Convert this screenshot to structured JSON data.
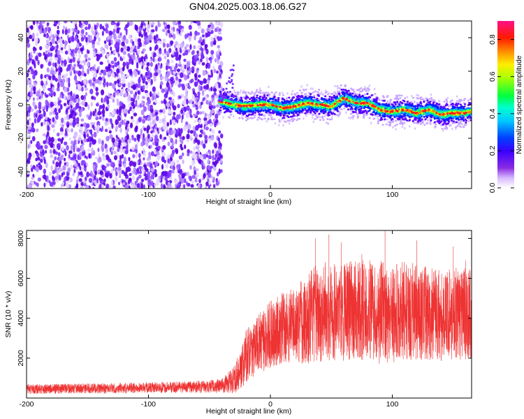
{
  "title": "GN04.2025.003.18.06.G27",
  "colors": {
    "snr_line": "#ee3333",
    "noise_point": "#6a1bff",
    "axis": "#000000"
  },
  "chart_data": [
    {
      "type": "heatmap",
      "xlabel": "Height of straight line (km)",
      "ylabel": "Frequency (Hz)",
      "xlim": [
        -200,
        165
      ],
      "ylim": [
        -50,
        50
      ],
      "x_ticks": [
        -200,
        -100,
        0,
        100
      ],
      "x_tick_labels": [
        "-200",
        "-100",
        "0",
        "100"
      ],
      "y_ticks": [
        -40,
        -20,
        0,
        20,
        40
      ],
      "y_tick_labels": [
        "-40",
        "-20",
        "0",
        "20",
        "40"
      ],
      "colorbar": {
        "label": "Normalized spectral amplitude",
        "range": [
          0,
          0.9
        ],
        "ticks": [
          0,
          0.2,
          0.4,
          0.6,
          0.8
        ],
        "tick_labels": [
          "0.0",
          "0.2",
          "0.4",
          "0.6",
          "0.8"
        ],
        "colormap": "rainbow (white-violet-blue-cyan-green-yellow-red-magenta)"
      },
      "noise_region": {
        "x_range": [
          -200,
          -40
        ],
        "y_range": [
          -50,
          50
        ],
        "amplitude": "0.0-0.15"
      },
      "ridge": {
        "x": [
          -42,
          -30,
          -20,
          -10,
          0,
          10,
          20,
          30,
          40,
          50,
          60,
          70,
          80,
          90,
          100,
          110,
          120,
          130,
          140,
          150,
          160,
          165
        ],
        "frequency": [
          2,
          0,
          -1,
          0,
          0,
          -2,
          -1,
          1,
          0,
          -1,
          4,
          1,
          1,
          -3,
          -4,
          -3,
          -5,
          -3,
          -6,
          -5,
          -5,
          -4
        ]
      }
    },
    {
      "type": "line",
      "xlabel": "Height of straight line (km)",
      "ylabel": "SNR (10 * v/v)",
      "xlim": [
        -200,
        165
      ],
      "ylim": [
        0,
        8400
      ],
      "x_ticks": [
        -200,
        -100,
        0,
        100
      ],
      "x_tick_labels": [
        "-200",
        "-100",
        "0",
        "100"
      ],
      "y_ticks": [
        2000,
        4000,
        6000,
        8000
      ],
      "y_tick_labels": [
        "2000",
        "4000",
        "6000",
        "8000"
      ],
      "series": [
        {
          "color": "#ee3333",
          "x": [
            -200,
            -150,
            -100,
            -60,
            -40,
            -30,
            -25,
            -20,
            -10,
            0,
            10,
            20,
            30,
            40,
            50,
            60,
            70,
            80,
            90,
            100,
            110,
            120,
            130,
            140,
            150,
            160,
            165
          ],
          "mean": [
            450,
            480,
            520,
            560,
            620,
            900,
            1400,
            2100,
            2700,
            3200,
            3500,
            3700,
            4000,
            4300,
            4400,
            4350,
            4450,
            4400,
            4300,
            4250,
            4400,
            4300,
            4200,
            4150,
            4250,
            4200,
            4150
          ],
          "spread": [
            250,
            250,
            270,
            300,
            350,
            700,
            1000,
            1300,
            1500,
            1700,
            1800,
            2000,
            2300,
            2500,
            2500,
            2500,
            2600,
            2500,
            2600,
            2500,
            2500,
            2400,
            2400,
            2300,
            2400,
            2300,
            2300
          ],
          "peaks": [
            {
              "x": 37,
              "y": 8000
            },
            {
              "x": 48,
              "y": 8200
            },
            {
              "x": 58,
              "y": 7800
            },
            {
              "x": 94,
              "y": 8400
            },
            {
              "x": 75,
              "y": 7200
            },
            {
              "x": 120,
              "y": 7900
            },
            {
              "x": 150,
              "y": 7600
            },
            {
              "x": 160,
              "y": 6900
            }
          ]
        }
      ]
    }
  ]
}
